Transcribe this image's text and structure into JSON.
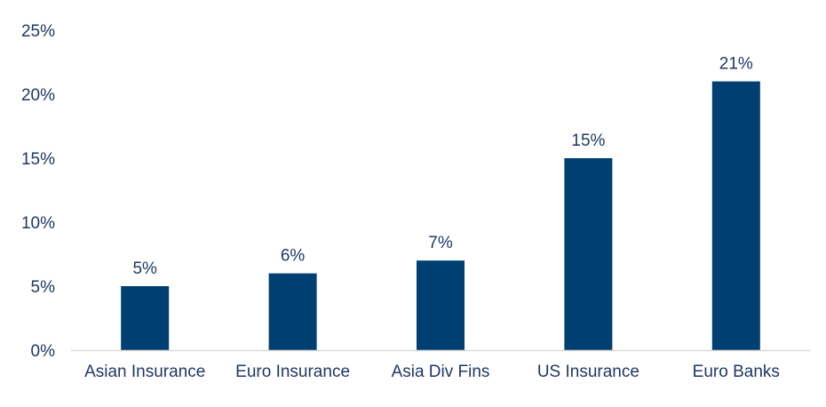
{
  "chart_data": {
    "type": "bar",
    "categories": [
      "Asian Insurance",
      "Euro Insurance",
      "Asia Div Fins",
      "US Insurance",
      "Euro Banks"
    ],
    "values": [
      5,
      6,
      7,
      15,
      21
    ],
    "data_labels": [
      "5%",
      "6%",
      "7%",
      "15%",
      "21%"
    ],
    "ylim": [
      0,
      25
    ],
    "yticks": [
      0,
      5,
      10,
      15,
      20,
      25
    ],
    "ytick_labels": [
      "0%",
      "5%",
      "10%",
      "15%",
      "20%",
      "25%"
    ],
    "grid": false,
    "legend": "none",
    "bar_color": "#003f72",
    "text_color": "#1f3864",
    "axis_color": "#d9d9d9"
  }
}
